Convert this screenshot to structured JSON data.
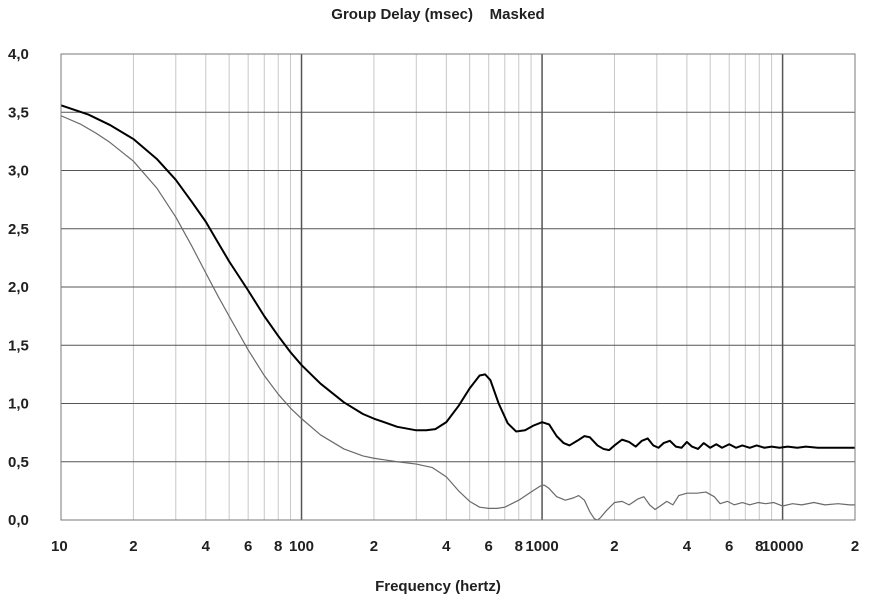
{
  "chart_data": {
    "type": "line",
    "title": "Group Delay (msec)    Masked",
    "xlabel": "Frequency (hertz)",
    "ylabel": "",
    "x_scale": "log",
    "xlim": [
      10,
      20000
    ],
    "ylim": [
      0,
      4.0
    ],
    "grid": true,
    "yticks": [
      {
        "value": 0.0,
        "label": "0,0"
      },
      {
        "value": 0.5,
        "label": "0,5"
      },
      {
        "value": 1.0,
        "label": "1,0"
      },
      {
        "value": 1.5,
        "label": "1,5"
      },
      {
        "value": 2.0,
        "label": "2,0"
      },
      {
        "value": 2.5,
        "label": "2,5"
      },
      {
        "value": 3.0,
        "label": "3,0"
      },
      {
        "value": 3.5,
        "label": "3,5"
      },
      {
        "value": 4.0,
        "label": "4,0"
      }
    ],
    "xticks": [
      {
        "value": 10,
        "label": "10"
      },
      {
        "value": 20,
        "label": "2"
      },
      {
        "value": 40,
        "label": "4"
      },
      {
        "value": 60,
        "label": "6"
      },
      {
        "value": 80,
        "label": "8"
      },
      {
        "value": 100,
        "label": "100"
      },
      {
        "value": 200,
        "label": "2"
      },
      {
        "value": 400,
        "label": "4"
      },
      {
        "value": 600,
        "label": "6"
      },
      {
        "value": 800,
        "label": "8"
      },
      {
        "value": 1000,
        "label": "1000"
      },
      {
        "value": 2000,
        "label": "2"
      },
      {
        "value": 4000,
        "label": "4"
      },
      {
        "value": 6000,
        "label": "6"
      },
      {
        "value": 8000,
        "label": "8"
      },
      {
        "value": 10000,
        "label": "10000"
      },
      {
        "value": 20000,
        "label": "2"
      }
    ],
    "series": [
      {
        "color": "#000000",
        "points": [
          [
            10,
            3.56
          ],
          [
            13,
            3.48
          ],
          [
            16,
            3.39
          ],
          [
            20,
            3.27
          ],
          [
            25,
            3.1
          ],
          [
            30,
            2.92
          ],
          [
            35,
            2.73
          ],
          [
            40,
            2.56
          ],
          [
            45,
            2.38
          ],
          [
            50,
            2.22
          ],
          [
            60,
            1.97
          ],
          [
            70,
            1.75
          ],
          [
            80,
            1.58
          ],
          [
            90,
            1.44
          ],
          [
            100,
            1.33
          ],
          [
            120,
            1.17
          ],
          [
            150,
            1.01
          ],
          [
            180,
            0.91
          ],
          [
            200,
            0.87
          ],
          [
            250,
            0.8
          ],
          [
            300,
            0.77
          ],
          [
            330,
            0.77
          ],
          [
            360,
            0.78
          ],
          [
            400,
            0.84
          ],
          [
            450,
            0.98
          ],
          [
            500,
            1.13
          ],
          [
            550,
            1.24
          ],
          [
            580,
            1.25
          ],
          [
            610,
            1.2
          ],
          [
            660,
            1.0
          ],
          [
            720,
            0.83
          ],
          [
            780,
            0.76
          ],
          [
            850,
            0.77
          ],
          [
            920,
            0.81
          ],
          [
            1000,
            0.84
          ],
          [
            1070,
            0.82
          ],
          [
            1150,
            0.72
          ],
          [
            1230,
            0.66
          ],
          [
            1300,
            0.64
          ],
          [
            1400,
            0.68
          ],
          [
            1500,
            0.72
          ],
          [
            1580,
            0.71
          ],
          [
            1700,
            0.64
          ],
          [
            1800,
            0.61
          ],
          [
            1900,
            0.6
          ],
          [
            2000,
            0.64
          ],
          [
            2150,
            0.69
          ],
          [
            2300,
            0.67
          ],
          [
            2450,
            0.63
          ],
          [
            2600,
            0.68
          ],
          [
            2750,
            0.7
          ],
          [
            2900,
            0.64
          ],
          [
            3050,
            0.62
          ],
          [
            3200,
            0.66
          ],
          [
            3400,
            0.68
          ],
          [
            3600,
            0.63
          ],
          [
            3800,
            0.62
          ],
          [
            4000,
            0.67
          ],
          [
            4200,
            0.63
          ],
          [
            4450,
            0.61
          ],
          [
            4700,
            0.66
          ],
          [
            5000,
            0.62
          ],
          [
            5300,
            0.65
          ],
          [
            5600,
            0.62
          ],
          [
            6000,
            0.65
          ],
          [
            6400,
            0.62
          ],
          [
            6800,
            0.64
          ],
          [
            7300,
            0.62
          ],
          [
            7800,
            0.64
          ],
          [
            8400,
            0.62
          ],
          [
            9000,
            0.63
          ],
          [
            9700,
            0.62
          ],
          [
            10500,
            0.63
          ],
          [
            11500,
            0.62
          ],
          [
            12500,
            0.63
          ],
          [
            14000,
            0.62
          ],
          [
            16000,
            0.62
          ],
          [
            18000,
            0.62
          ],
          [
            20000,
            0.62
          ]
        ]
      },
      {
        "color": "#6a6a6a",
        "points": [
          [
            10,
            3.47
          ],
          [
            12,
            3.4
          ],
          [
            14,
            3.32
          ],
          [
            16,
            3.24
          ],
          [
            20,
            3.08
          ],
          [
            25,
            2.85
          ],
          [
            30,
            2.6
          ],
          [
            35,
            2.35
          ],
          [
            40,
            2.12
          ],
          [
            45,
            1.92
          ],
          [
            50,
            1.75
          ],
          [
            60,
            1.46
          ],
          [
            70,
            1.24
          ],
          [
            80,
            1.08
          ],
          [
            90,
            0.96
          ],
          [
            100,
            0.87
          ],
          [
            120,
            0.73
          ],
          [
            150,
            0.61
          ],
          [
            180,
            0.55
          ],
          [
            200,
            0.53
          ],
          [
            250,
            0.5
          ],
          [
            300,
            0.48
          ],
          [
            350,
            0.45
          ],
          [
            400,
            0.37
          ],
          [
            450,
            0.25
          ],
          [
            500,
            0.16
          ],
          [
            550,
            0.11
          ],
          [
            600,
            0.1
          ],
          [
            650,
            0.1
          ],
          [
            700,
            0.11
          ],
          [
            800,
            0.17
          ],
          [
            900,
            0.24
          ],
          [
            980,
            0.29
          ],
          [
            1020,
            0.3
          ],
          [
            1070,
            0.27
          ],
          [
            1150,
            0.2
          ],
          [
            1250,
            0.17
          ],
          [
            1350,
            0.19
          ],
          [
            1420,
            0.21
          ],
          [
            1500,
            0.17
          ],
          [
            1580,
            0.07
          ],
          [
            1650,
            0.01
          ],
          [
            1700,
            0.0
          ],
          [
            1750,
            0.02
          ],
          [
            1850,
            0.08
          ],
          [
            2000,
            0.15
          ],
          [
            2150,
            0.16
          ],
          [
            2300,
            0.13
          ],
          [
            2500,
            0.18
          ],
          [
            2650,
            0.2
          ],
          [
            2800,
            0.13
          ],
          [
            2950,
            0.09
          ],
          [
            3100,
            0.12
          ],
          [
            3300,
            0.16
          ],
          [
            3500,
            0.13
          ],
          [
            3700,
            0.21
          ],
          [
            4000,
            0.23
          ],
          [
            4400,
            0.23
          ],
          [
            4800,
            0.24
          ],
          [
            5200,
            0.2
          ],
          [
            5500,
            0.14
          ],
          [
            5900,
            0.16
          ],
          [
            6300,
            0.13
          ],
          [
            6800,
            0.15
          ],
          [
            7300,
            0.13
          ],
          [
            7900,
            0.15
          ],
          [
            8500,
            0.14
          ],
          [
            9200,
            0.15
          ],
          [
            10000,
            0.12
          ],
          [
            11000,
            0.14
          ],
          [
            12000,
            0.13
          ],
          [
            13500,
            0.15
          ],
          [
            15000,
            0.13
          ],
          [
            17000,
            0.14
          ],
          [
            19000,
            0.13
          ],
          [
            20000,
            0.13
          ]
        ]
      }
    ]
  }
}
